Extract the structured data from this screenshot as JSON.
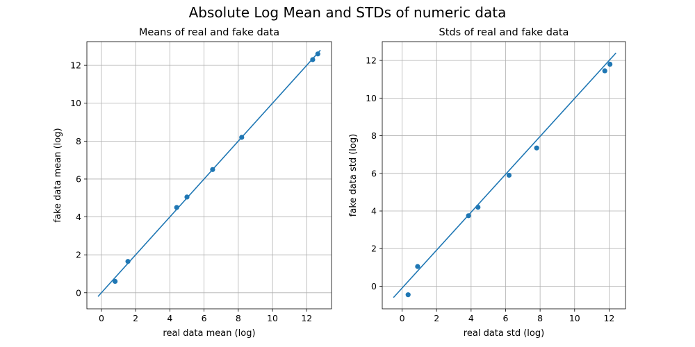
{
  "figure": {
    "suptitle": "Absolute Log Mean and STDs of numeric data"
  },
  "chart_data": [
    {
      "type": "scatter",
      "title": "Means of real and fake data",
      "xlabel": "real data mean (log)",
      "ylabel": "fake data mean (log)",
      "xlim": [
        -0.85,
        13.45
      ],
      "ylim": [
        -0.85,
        13.25
      ],
      "xticks": [
        0,
        2,
        4,
        6,
        8,
        10,
        12
      ],
      "yticks": [
        0,
        2,
        4,
        6,
        8,
        10,
        12
      ],
      "grid": true,
      "color": "#1f77b4",
      "points": {
        "x": [
          0.8,
          1.55,
          4.4,
          5.0,
          6.5,
          8.2,
          12.35,
          12.65
        ],
        "y": [
          0.6,
          1.65,
          4.5,
          5.05,
          6.5,
          8.2,
          12.3,
          12.6
        ]
      },
      "reference_line": {
        "x": [
          -0.2,
          12.8
        ],
        "y": [
          -0.2,
          12.8
        ]
      }
    },
    {
      "type": "scatter",
      "title": "Stds of real and fake data",
      "xlabel": "real data std (log)",
      "ylabel": "fake data std (log)",
      "xlim": [
        -1.15,
        12.95
      ],
      "ylim": [
        -1.2,
        13.0
      ],
      "xticks": [
        0,
        2,
        4,
        6,
        8,
        10,
        12
      ],
      "yticks": [
        0,
        2,
        4,
        6,
        8,
        10,
        12
      ],
      "grid": true,
      "color": "#1f77b4",
      "points": {
        "x": [
          0.35,
          0.9,
          3.85,
          4.4,
          6.2,
          7.8,
          11.75,
          12.05
        ],
        "y": [
          -0.45,
          1.05,
          3.75,
          4.2,
          5.9,
          7.35,
          11.45,
          11.8
        ]
      },
      "reference_line": {
        "x": [
          -0.5,
          12.4
        ],
        "y": [
          -0.6,
          12.4
        ]
      }
    }
  ]
}
